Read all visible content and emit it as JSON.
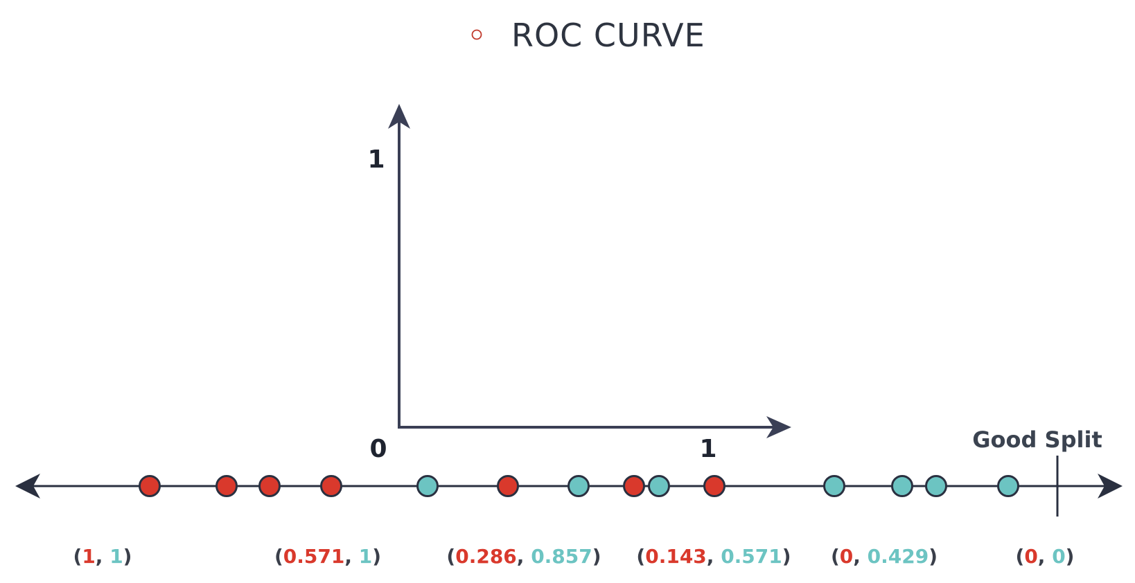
{
  "title": {
    "text": "ROC CURVE"
  },
  "axes": {
    "origin_label": "0",
    "x_end_label": "1",
    "y_end_label": "1"
  },
  "split": {
    "label": "Good Split"
  },
  "colors": {
    "negative": "#d9392c",
    "positive": "#6cc4c2",
    "ink": "#2a3040",
    "bracket": "#3a3f4a"
  },
  "points": [
    {
      "cls": "negative"
    },
    {
      "cls": "negative"
    },
    {
      "cls": "negative"
    },
    {
      "cls": "negative"
    },
    {
      "cls": "positive"
    },
    {
      "cls": "negative"
    },
    {
      "cls": "positive"
    },
    {
      "cls": "negative"
    },
    {
      "cls": "positive"
    },
    {
      "cls": "negative"
    },
    {
      "cls": "positive"
    },
    {
      "cls": "positive"
    },
    {
      "cls": "positive"
    },
    {
      "cls": "positive"
    }
  ],
  "pairs": [
    {
      "x": "1",
      "y": "1"
    },
    {
      "x": "0.571",
      "y": "1"
    },
    {
      "x": "0.286",
      "y": "0.857"
    },
    {
      "x": "0.143",
      "y": "0.571"
    },
    {
      "x": "0",
      "y": "0.429"
    },
    {
      "x": "0",
      "y": "0"
    }
  ]
}
